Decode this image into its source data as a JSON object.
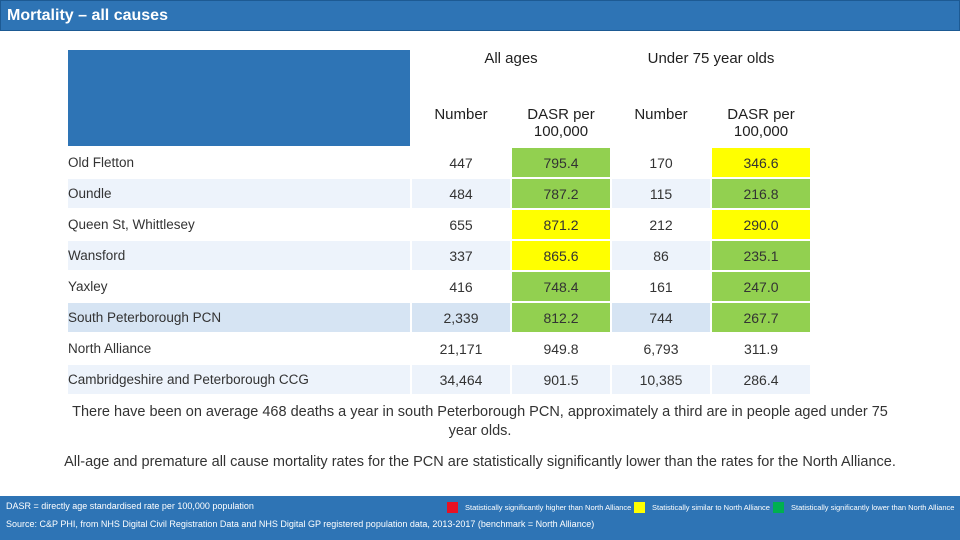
{
  "title": "Mortality – all causes",
  "table": {
    "group_headers": [
      "All ages",
      "Under 75 year olds"
    ],
    "sub_headers": [
      "Number",
      "DASR per 100,000",
      "Number",
      "DASR per 100,000"
    ],
    "rows": [
      {
        "name": "Old Fletton",
        "all_num": "447",
        "all_rate": "795.4",
        "all_rate_status": "green",
        "u75_num": "170",
        "u75_rate": "346.6",
        "u75_rate_status": "yellow"
      },
      {
        "name": "Oundle",
        "all_num": "484",
        "all_rate": "787.2",
        "all_rate_status": "green",
        "u75_num": "115",
        "u75_rate": "216.8",
        "u75_rate_status": "green"
      },
      {
        "name": "Queen St, Whittlesey",
        "all_num": "655",
        "all_rate": "871.2",
        "all_rate_status": "yellow",
        "u75_num": "212",
        "u75_rate": "290.0",
        "u75_rate_status": "yellow"
      },
      {
        "name": "Wansford",
        "all_num": "337",
        "all_rate": "865.6",
        "all_rate_status": "yellow",
        "u75_num": "86",
        "u75_rate": "235.1",
        "u75_rate_status": "green"
      },
      {
        "name": "Yaxley",
        "all_num": "416",
        "all_rate": "748.4",
        "all_rate_status": "green",
        "u75_num": "161",
        "u75_rate": "247.0",
        "u75_rate_status": "green"
      },
      {
        "name": "South Peterborough PCN",
        "all_num": "2,339",
        "all_rate": "812.2",
        "all_rate_status": "green",
        "u75_num": "744",
        "u75_rate": "267.7",
        "u75_rate_status": "green"
      },
      {
        "name": "North Alliance",
        "all_num": "21,171",
        "all_rate": "949.8",
        "all_rate_status": "none",
        "u75_num": "6,793",
        "u75_rate": "311.9",
        "u75_rate_status": "none"
      },
      {
        "name": "Cambridgeshire and Peterborough CCG",
        "all_num": "34,464",
        "all_rate": "901.5",
        "all_rate_status": "none",
        "u75_num": "10,385",
        "u75_rate": "286.4",
        "u75_rate_status": "none"
      }
    ]
  },
  "notes": {
    "line1": "There have been on average 468 deaths a year in south Peterborough PCN, approximately a third are in people aged under 75 year olds.",
    "line2": "All-age and premature all cause mortality rates for the PCN are statistically significantly lower than the rates for the North Alliance."
  },
  "footer": {
    "definition": "DASR = directly age standardised rate per 100,000 population",
    "source": "Source: C&P PHI, from NHS Digital Civil Registration Data and NHS Digital GP registered population data, 2013-2017 (benchmark = North Alliance)",
    "legend": [
      {
        "label": "Statistically significantly higher than North Alliance",
        "color": "#e81123"
      },
      {
        "label": "Statistically similar to North Alliance",
        "color": "#ffff00"
      },
      {
        "label": "Statistically significantly lower than North Alliance",
        "color": "#00b050"
      }
    ]
  },
  "colors": {
    "header": "#2e74b5",
    "green": "#92d050",
    "yellow": "#ffff00"
  }
}
